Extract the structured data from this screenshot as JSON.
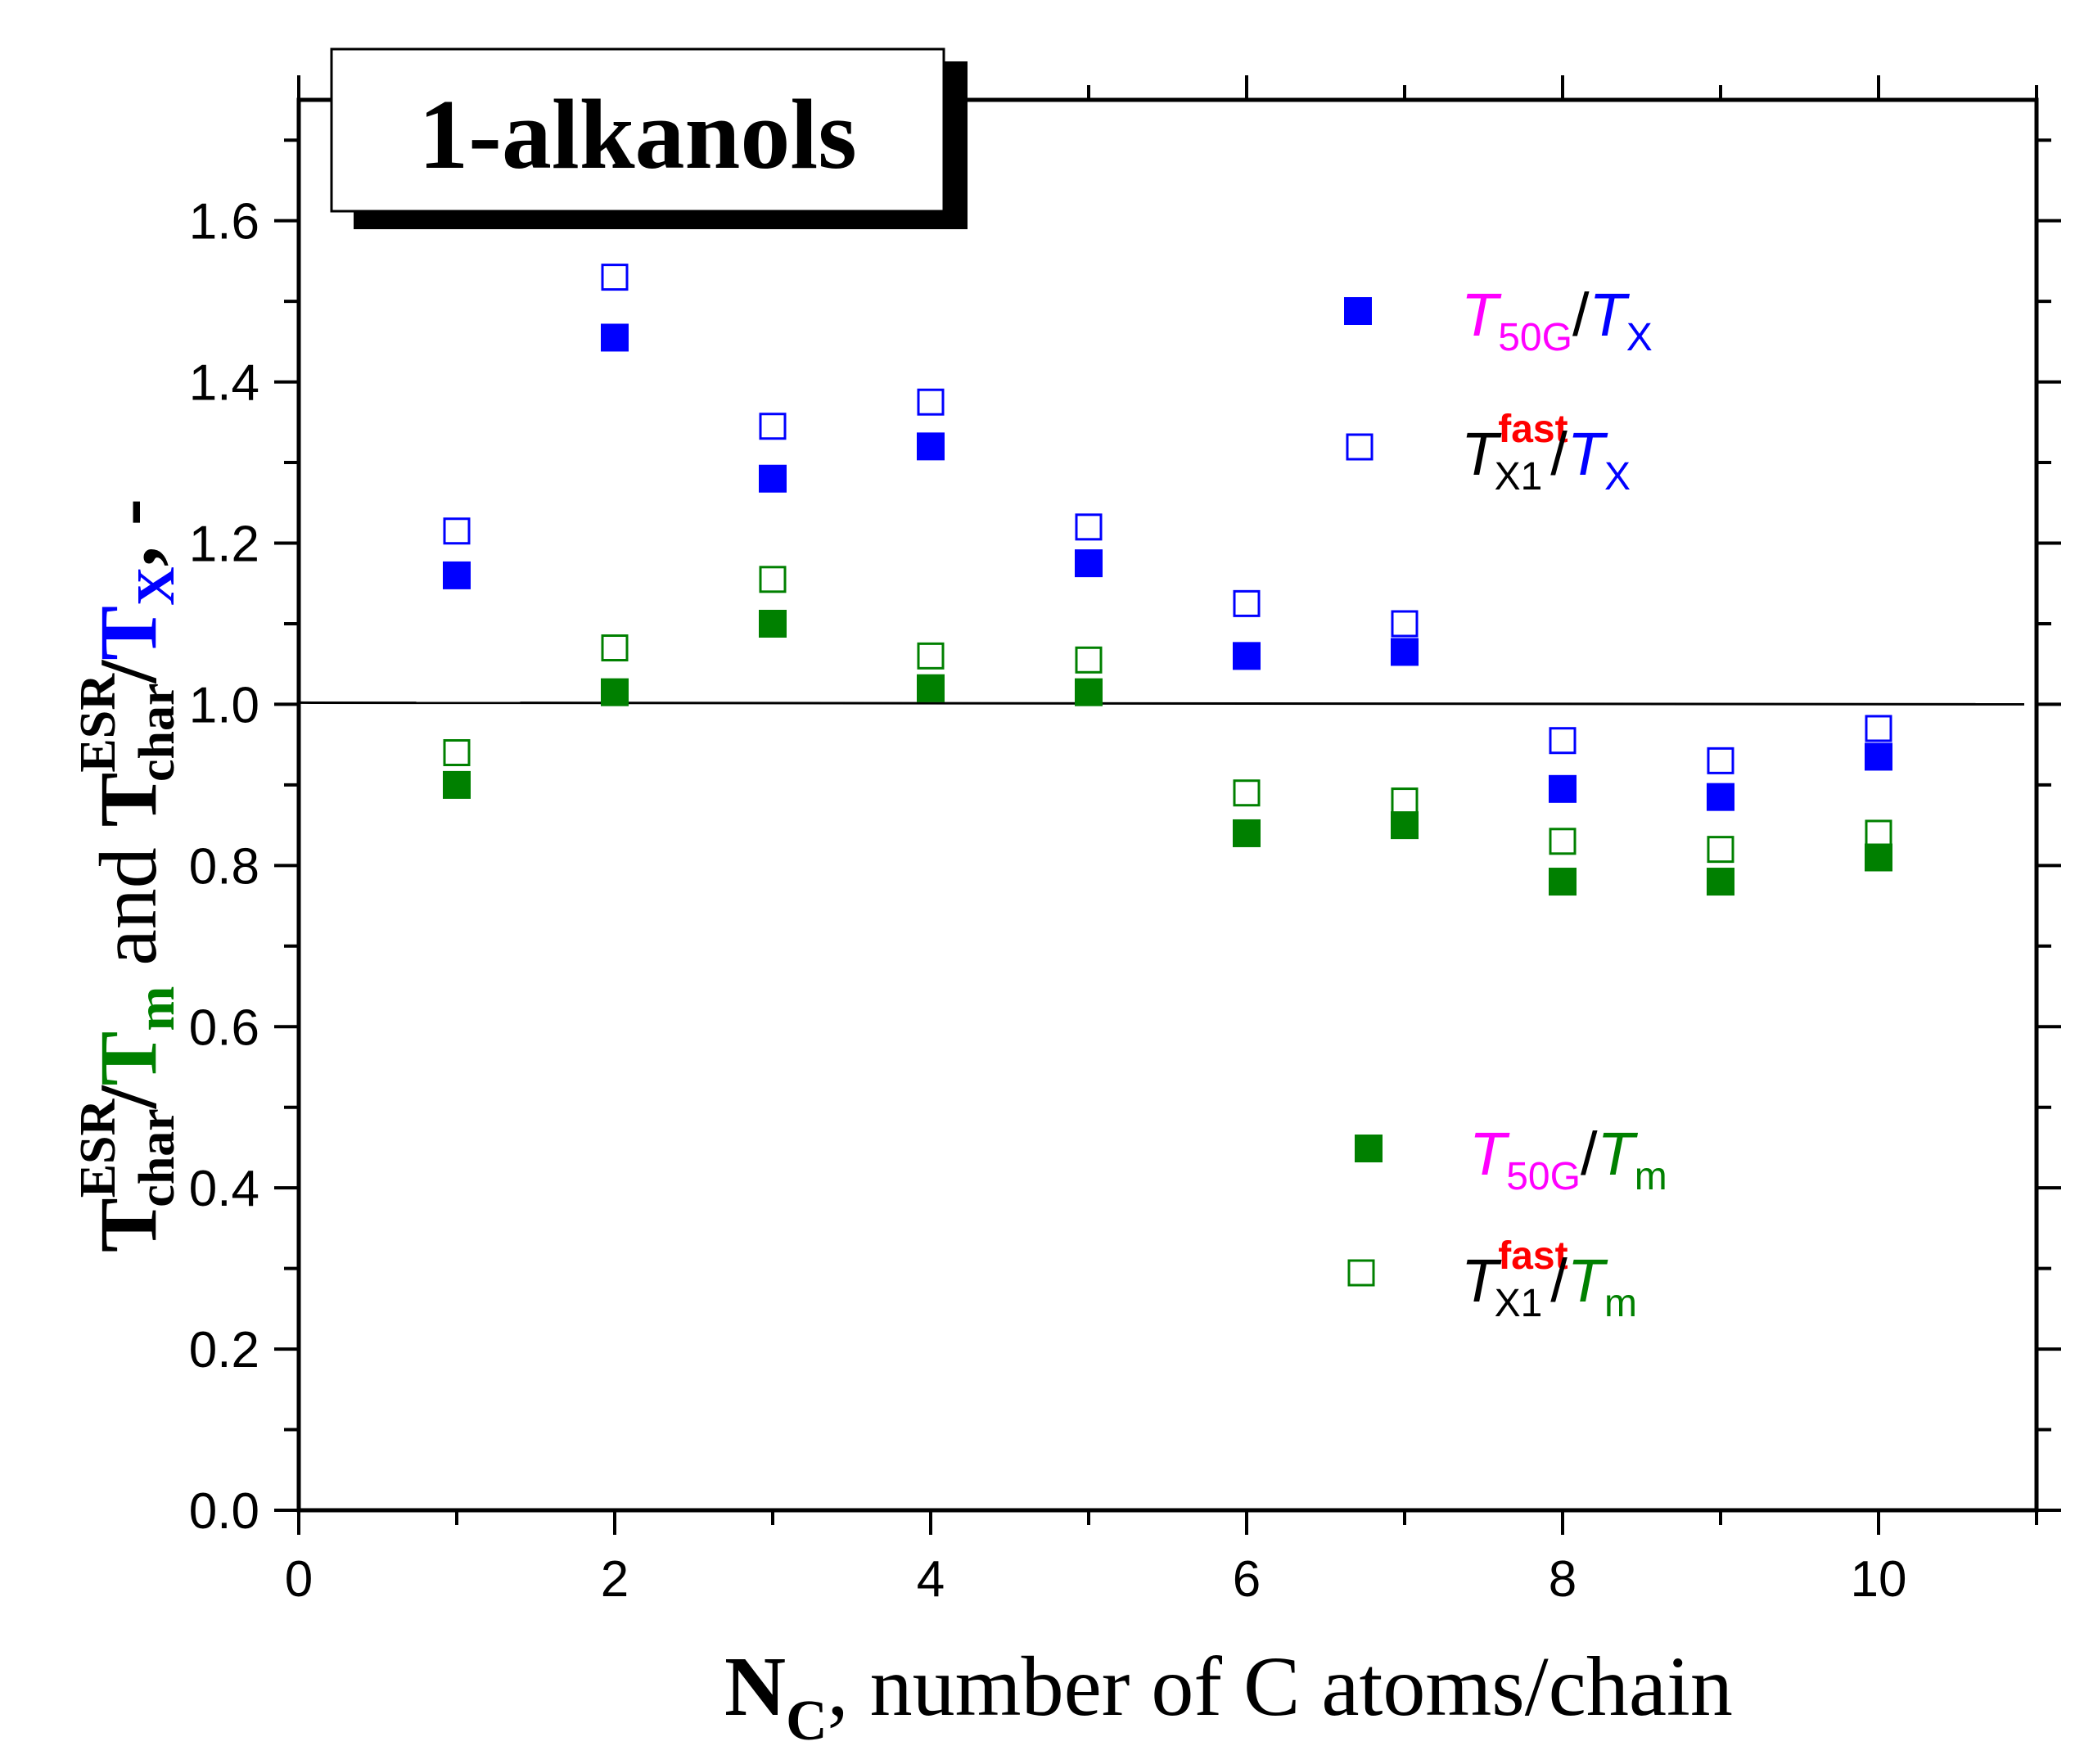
{
  "chart_data": {
    "type": "scatter",
    "title": "1-alkanols",
    "xlabel": {
      "main": "N",
      "sub": "C",
      "rest": ", number of C atoms/chain"
    },
    "ylabel": {
      "part1_T": "T",
      "part1_sup": "ESR",
      "part1_sub": "char",
      "part1_slash": "/",
      "part1_den": "T",
      "part1_den_sub": "m",
      "and": " and ",
      "part2_T": "T",
      "part2_sup": "ESR",
      "part2_sub": "char",
      "part2_slash": "/",
      "part2_den": "T",
      "part2_den_sub": "X",
      "tail": ", -"
    },
    "xlim": [
      0,
      11
    ],
    "ylim": [
      0,
      1.75
    ],
    "xticks": [
      0,
      2,
      4,
      6,
      8,
      10
    ],
    "yticks": [
      0.0,
      0.2,
      0.4,
      0.6,
      0.8,
      1.0,
      1.2,
      1.4,
      1.6
    ],
    "xtick_labels": [
      "0",
      "2",
      "4",
      "6",
      "8",
      "10"
    ],
    "ytick_labels": [
      "0.0",
      "0.2",
      "0.4",
      "0.6",
      "0.8",
      "1.0",
      "1.2",
      "1.4",
      "1.6"
    ],
    "reference_line": 1.0,
    "colors": {
      "blue": "#0000ff",
      "green": "#008000",
      "magenta": "#ff00ff",
      "red": "#ff0000",
      "black": "#000000"
    },
    "series": [
      {
        "name": "T50G/TX",
        "marker": "filled-square",
        "color": "#0000ff",
        "x": [
          1,
          2,
          3,
          4,
          5,
          6,
          7,
          8,
          9,
          10
        ],
        "y": [
          1.16,
          1.455,
          1.28,
          1.32,
          1.175,
          1.06,
          1.065,
          0.895,
          0.885,
          0.935
        ]
      },
      {
        "name": "TX1fast/TX",
        "marker": "open-square",
        "color": "#0000ff",
        "x": [
          1,
          2,
          3,
          4,
          5,
          6,
          7,
          8,
          9,
          10
        ],
        "y": [
          1.215,
          1.53,
          1.345,
          1.375,
          1.22,
          1.125,
          1.1,
          0.955,
          0.93,
          0.97
        ]
      },
      {
        "name": "T50G/Tm",
        "marker": "filled-square",
        "color": "#008000",
        "x": [
          1,
          2,
          3,
          4,
          5,
          6,
          7,
          8,
          9,
          10
        ],
        "y": [
          0.9,
          1.015,
          1.1,
          1.02,
          1.015,
          0.84,
          0.85,
          0.78,
          0.78,
          0.81
        ]
      },
      {
        "name": "TX1fast/Tm",
        "marker": "open-square",
        "color": "#008000",
        "x": [
          1,
          2,
          3,
          4,
          5,
          6,
          7,
          8,
          9,
          10
        ],
        "y": [
          0.94,
          1.07,
          1.155,
          1.06,
          1.055,
          0.89,
          0.88,
          0.83,
          0.82,
          0.84
        ]
      }
    ],
    "legend": [
      {
        "series": "T50G/TX",
        "marker": "filled-square",
        "color": "#0000ff",
        "num_T": "T",
        "num_sub": "50G",
        "num_sup": "",
        "num_color": "#ff00ff",
        "num_sub_color": "#ff00ff",
        "num_sup_color": "#ff0000",
        "slash": "/",
        "den_T": "T",
        "den_sub": "X",
        "den_color": "#0000ff"
      },
      {
        "series": "TX1fast/TX",
        "marker": "open-square",
        "color": "#0000ff",
        "num_T": "T",
        "num_sub": "X1",
        "num_sup": "fast",
        "num_color": "#000000",
        "num_sub_color": "#000000",
        "num_sup_color": "#ff0000",
        "slash": "/",
        "den_T": "T",
        "den_sub": "X",
        "den_color": "#0000ff"
      },
      {
        "series": "T50G/Tm",
        "marker": "filled-square",
        "color": "#008000",
        "num_T": "T",
        "num_sub": "50G",
        "num_sup": "",
        "num_color": "#ff00ff",
        "num_sub_color": "#ff00ff",
        "num_sup_color": "#ff0000",
        "slash": "/",
        "den_T": "T",
        "den_sub": "m",
        "den_color": "#008000"
      },
      {
        "series": "TX1fast/Tm",
        "marker": "open-square",
        "color": "#008000",
        "num_T": "T",
        "num_sub": "X1",
        "num_sup": "fast",
        "num_color": "#000000",
        "num_sub_color": "#000000",
        "num_sup_color": "#ff0000",
        "slash": "/",
        "den_T": "T",
        "den_sub": "m",
        "den_color": "#008000"
      }
    ]
  }
}
